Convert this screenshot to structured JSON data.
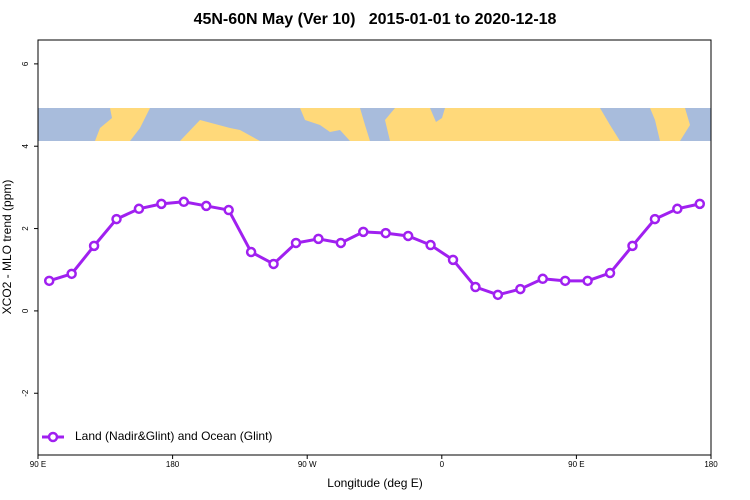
{
  "chart_data": {
    "type": "line",
    "title": "45N-60N May (Ver 10)   2015-01-01 to 2020-12-18",
    "xlabel": "Longitude (deg E)",
    "ylabel": "XCO2 - MLO trend (ppm)",
    "x": [
      97.5,
      112.5,
      127.5,
      142.5,
      157.5,
      172.5,
      187.5,
      202.5,
      217.5,
      232.5,
      247.5,
      262.5,
      277.5,
      292.5,
      307.5,
      322.5,
      337.5,
      352.5,
      367.5,
      382.5,
      397.5,
      412.5,
      427.5,
      442.5,
      457.5,
      472.5,
      487.5,
      502.5,
      517.5,
      532.5
    ],
    "series": [
      {
        "name": "Land (Nadir&Glint) and Ocean (Glint)",
        "color": "#a020f0",
        "values": [
          0.73,
          0.9,
          1.58,
          2.23,
          2.48,
          2.6,
          2.65,
          2.55,
          2.45,
          1.43,
          1.14,
          1.65,
          1.75,
          1.65,
          1.92,
          1.89,
          1.82,
          1.6,
          1.24,
          0.58,
          0.39,
          0.53,
          0.78,
          0.73,
          0.73,
          0.92,
          1.58,
          2.23,
          2.48,
          2.6
        ]
      }
    ],
    "xlim": [
      90,
      540
    ],
    "xticks": [
      {
        "value": 90,
        "label": "90 E"
      },
      {
        "value": 180,
        "label": "180"
      },
      {
        "value": 270,
        "label": "90 W"
      },
      {
        "value": 360,
        "label": "0"
      },
      {
        "value": 450,
        "label": "90 E"
      },
      {
        "value": 540,
        "label": "180"
      }
    ],
    "ylim": [
      -3.5,
      6.58
    ],
    "yticks": [
      -2,
      0,
      2,
      4,
      6
    ],
    "legend": "bottom-left"
  }
}
